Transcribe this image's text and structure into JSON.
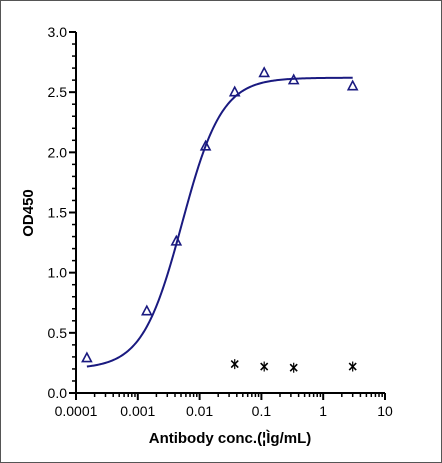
{
  "chart_data": {
    "type": "scatter",
    "title": "",
    "xlabel": "Antibody conc.(¦Ìg/mL)",
    "ylabel": "OD450",
    "x_scale": "log",
    "xlim": [
      0.0001,
      10
    ],
    "ylim": [
      0,
      3.0
    ],
    "x_tick_labels": [
      "0.0001",
      "0.001",
      "0.01",
      "0.1",
      "1",
      "10"
    ],
    "y_tick_labels": [
      "0.0",
      "0.5",
      "1.0",
      "1.5",
      "2.0",
      "2.5",
      "3.0"
    ],
    "grid": false,
    "legend": "none",
    "colors": {
      "series_triangle": "#1a1a80",
      "series_cross": "#000000",
      "axis": "#000000"
    },
    "series": [
      {
        "marker": "triangle",
        "x": [
          0.00015,
          0.0014,
          0.0042,
          0.0125,
          0.037,
          0.111,
          0.333,
          3.0
        ],
        "y": [
          0.29,
          0.68,
          1.26,
          2.05,
          2.5,
          2.66,
          2.6,
          2.55
        ],
        "fit": "4PL",
        "fit_params": {
          "bottom": 0.2,
          "top": 2.62,
          "ec50": 0.0052,
          "hill": 1.35
        }
      },
      {
        "marker": "cross",
        "x": [
          0.037,
          0.111,
          0.333,
          3.0
        ],
        "y": [
          0.24,
          0.22,
          0.21,
          0.22
        ]
      }
    ]
  }
}
